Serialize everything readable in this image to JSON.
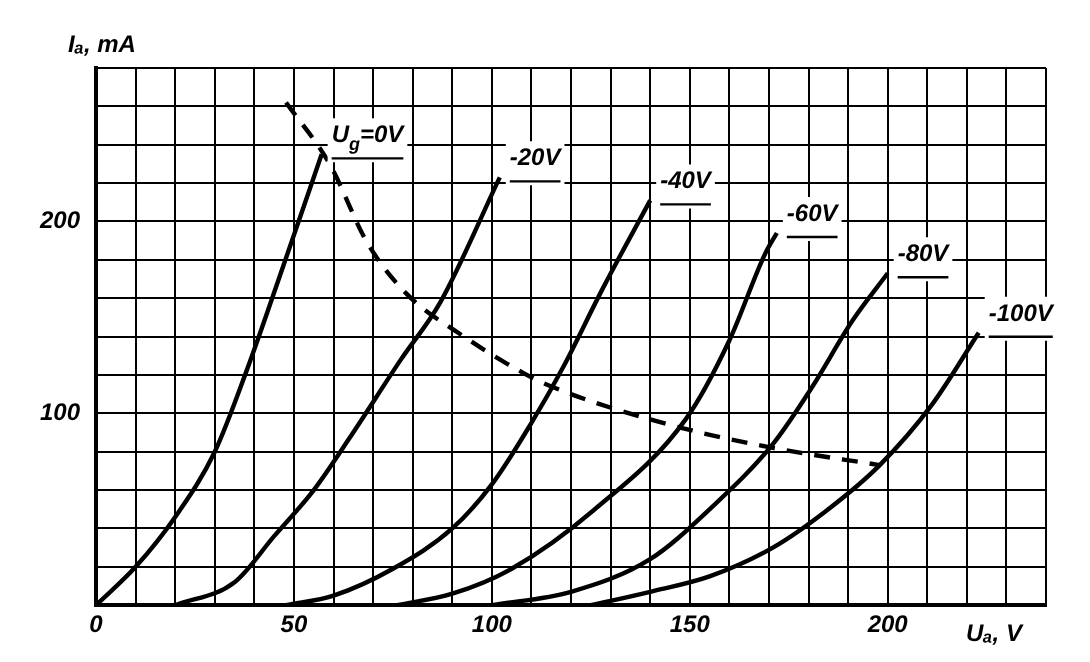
{
  "chart_data": {
    "type": "line",
    "xlabel": "Uₐ, V",
    "ylabel": "Iₐ, mA",
    "xlim": [
      0,
      240
    ],
    "ylim": [
      0,
      280
    ],
    "xticks": [
      0,
      {
        "value": 10,
        "label": null
      },
      {
        "value": 20,
        "label": null
      },
      {
        "value": 30,
        "label": null
      },
      {
        "value": 40,
        "label": null
      },
      50,
      {
        "value": 60,
        "label": null
      },
      {
        "value": 70,
        "label": null
      },
      {
        "value": 80,
        "label": null
      },
      {
        "value": 90,
        "label": null
      },
      100,
      {
        "value": 110,
        "label": null
      },
      {
        "value": 120,
        "label": null
      },
      {
        "value": 130,
        "label": null
      },
      {
        "value": 140,
        "label": null
      },
      150,
      {
        "value": 160,
        "label": null
      },
      {
        "value": 170,
        "label": null
      },
      {
        "value": 180,
        "label": null
      },
      {
        "value": 190,
        "label": null
      },
      200,
      {
        "value": 210,
        "label": null
      },
      {
        "value": 220,
        "label": null
      },
      {
        "value": 230,
        "label": null
      },
      {
        "value": 240,
        "label": null
      }
    ],
    "yticks": [
      {
        "value": 0,
        "label": null
      },
      {
        "value": 20,
        "label": null
      },
      {
        "value": 40,
        "label": null
      },
      {
        "value": 60,
        "label": null
      },
      {
        "value": 80,
        "label": null
      },
      100,
      {
        "value": 120,
        "label": null
      },
      {
        "value": 140,
        "label": null
      },
      {
        "value": 160,
        "label": null
      },
      {
        "value": 180,
        "label": null
      },
      200,
      {
        "value": 220,
        "label": null
      },
      {
        "value": 240,
        "label": null
      },
      {
        "value": 260,
        "label": null
      },
      {
        "value": 280,
        "label": null
      }
    ],
    "grid": true,
    "legend": false,
    "marker": "none",
    "series": [
      {
        "name": "U$_{g}$=0V",
        "color": "#000000",
        "line_style": "solid",
        "x": [
          0,
          10,
          20,
          30,
          38,
          48,
          57
        ],
        "values": [
          0,
          20,
          46,
          80,
          122,
          181,
          235
        ]
      },
      {
        "name": "-20V",
        "color": "#000000",
        "line_style": "solid",
        "x": [
          20,
          35,
          45,
          55,
          64,
          77,
          87,
          102
        ],
        "values": [
          0,
          12,
          36,
          60,
          87,
          128,
          158,
          223
        ]
      },
      {
        "name": "-40V",
        "color": "#000000",
        "line_style": "solid",
        "x": [
          48,
          60,
          75,
          90,
          100,
          110,
          118,
          128,
          140
        ],
        "values": [
          0,
          5,
          19,
          40,
          63,
          95,
          124,
          165,
          211
        ]
      },
      {
        "name": "-60V",
        "color": "#000000",
        "line_style": "solid",
        "x": [
          76,
          90,
          105,
          126,
          149,
          160,
          169,
          172
        ],
        "values": [
          0,
          6,
          19,
          50,
          97,
          138,
          183,
          194
        ]
      },
      {
        "name": "-80V",
        "color": "#000000",
        "line_style": "solid",
        "x": [
          100,
          120,
          140,
          155,
          171,
          181,
          191,
          200
        ],
        "values": [
          0,
          7,
          24,
          50,
          84,
          114,
          148,
          173
        ]
      },
      {
        "name": "-100V",
        "color": "#000000",
        "line_style": "solid",
        "x": [
          125,
          140,
          155,
          171,
          185,
          198,
          211,
          223
        ],
        "values": [
          0,
          7,
          15,
          30,
          50,
          73,
          104,
          142
        ]
      },
      {
        "color": "#000000",
        "line_style": "dashed",
        "x": [
          48,
          59,
          68.5,
          78.6,
          91.5,
          108,
          115,
          145,
          171,
          198
        ],
        "values": [
          262,
          230,
          189,
          162,
          142,
          121,
          114,
          94,
          82,
          73
        ]
      }
    ]
  }
}
